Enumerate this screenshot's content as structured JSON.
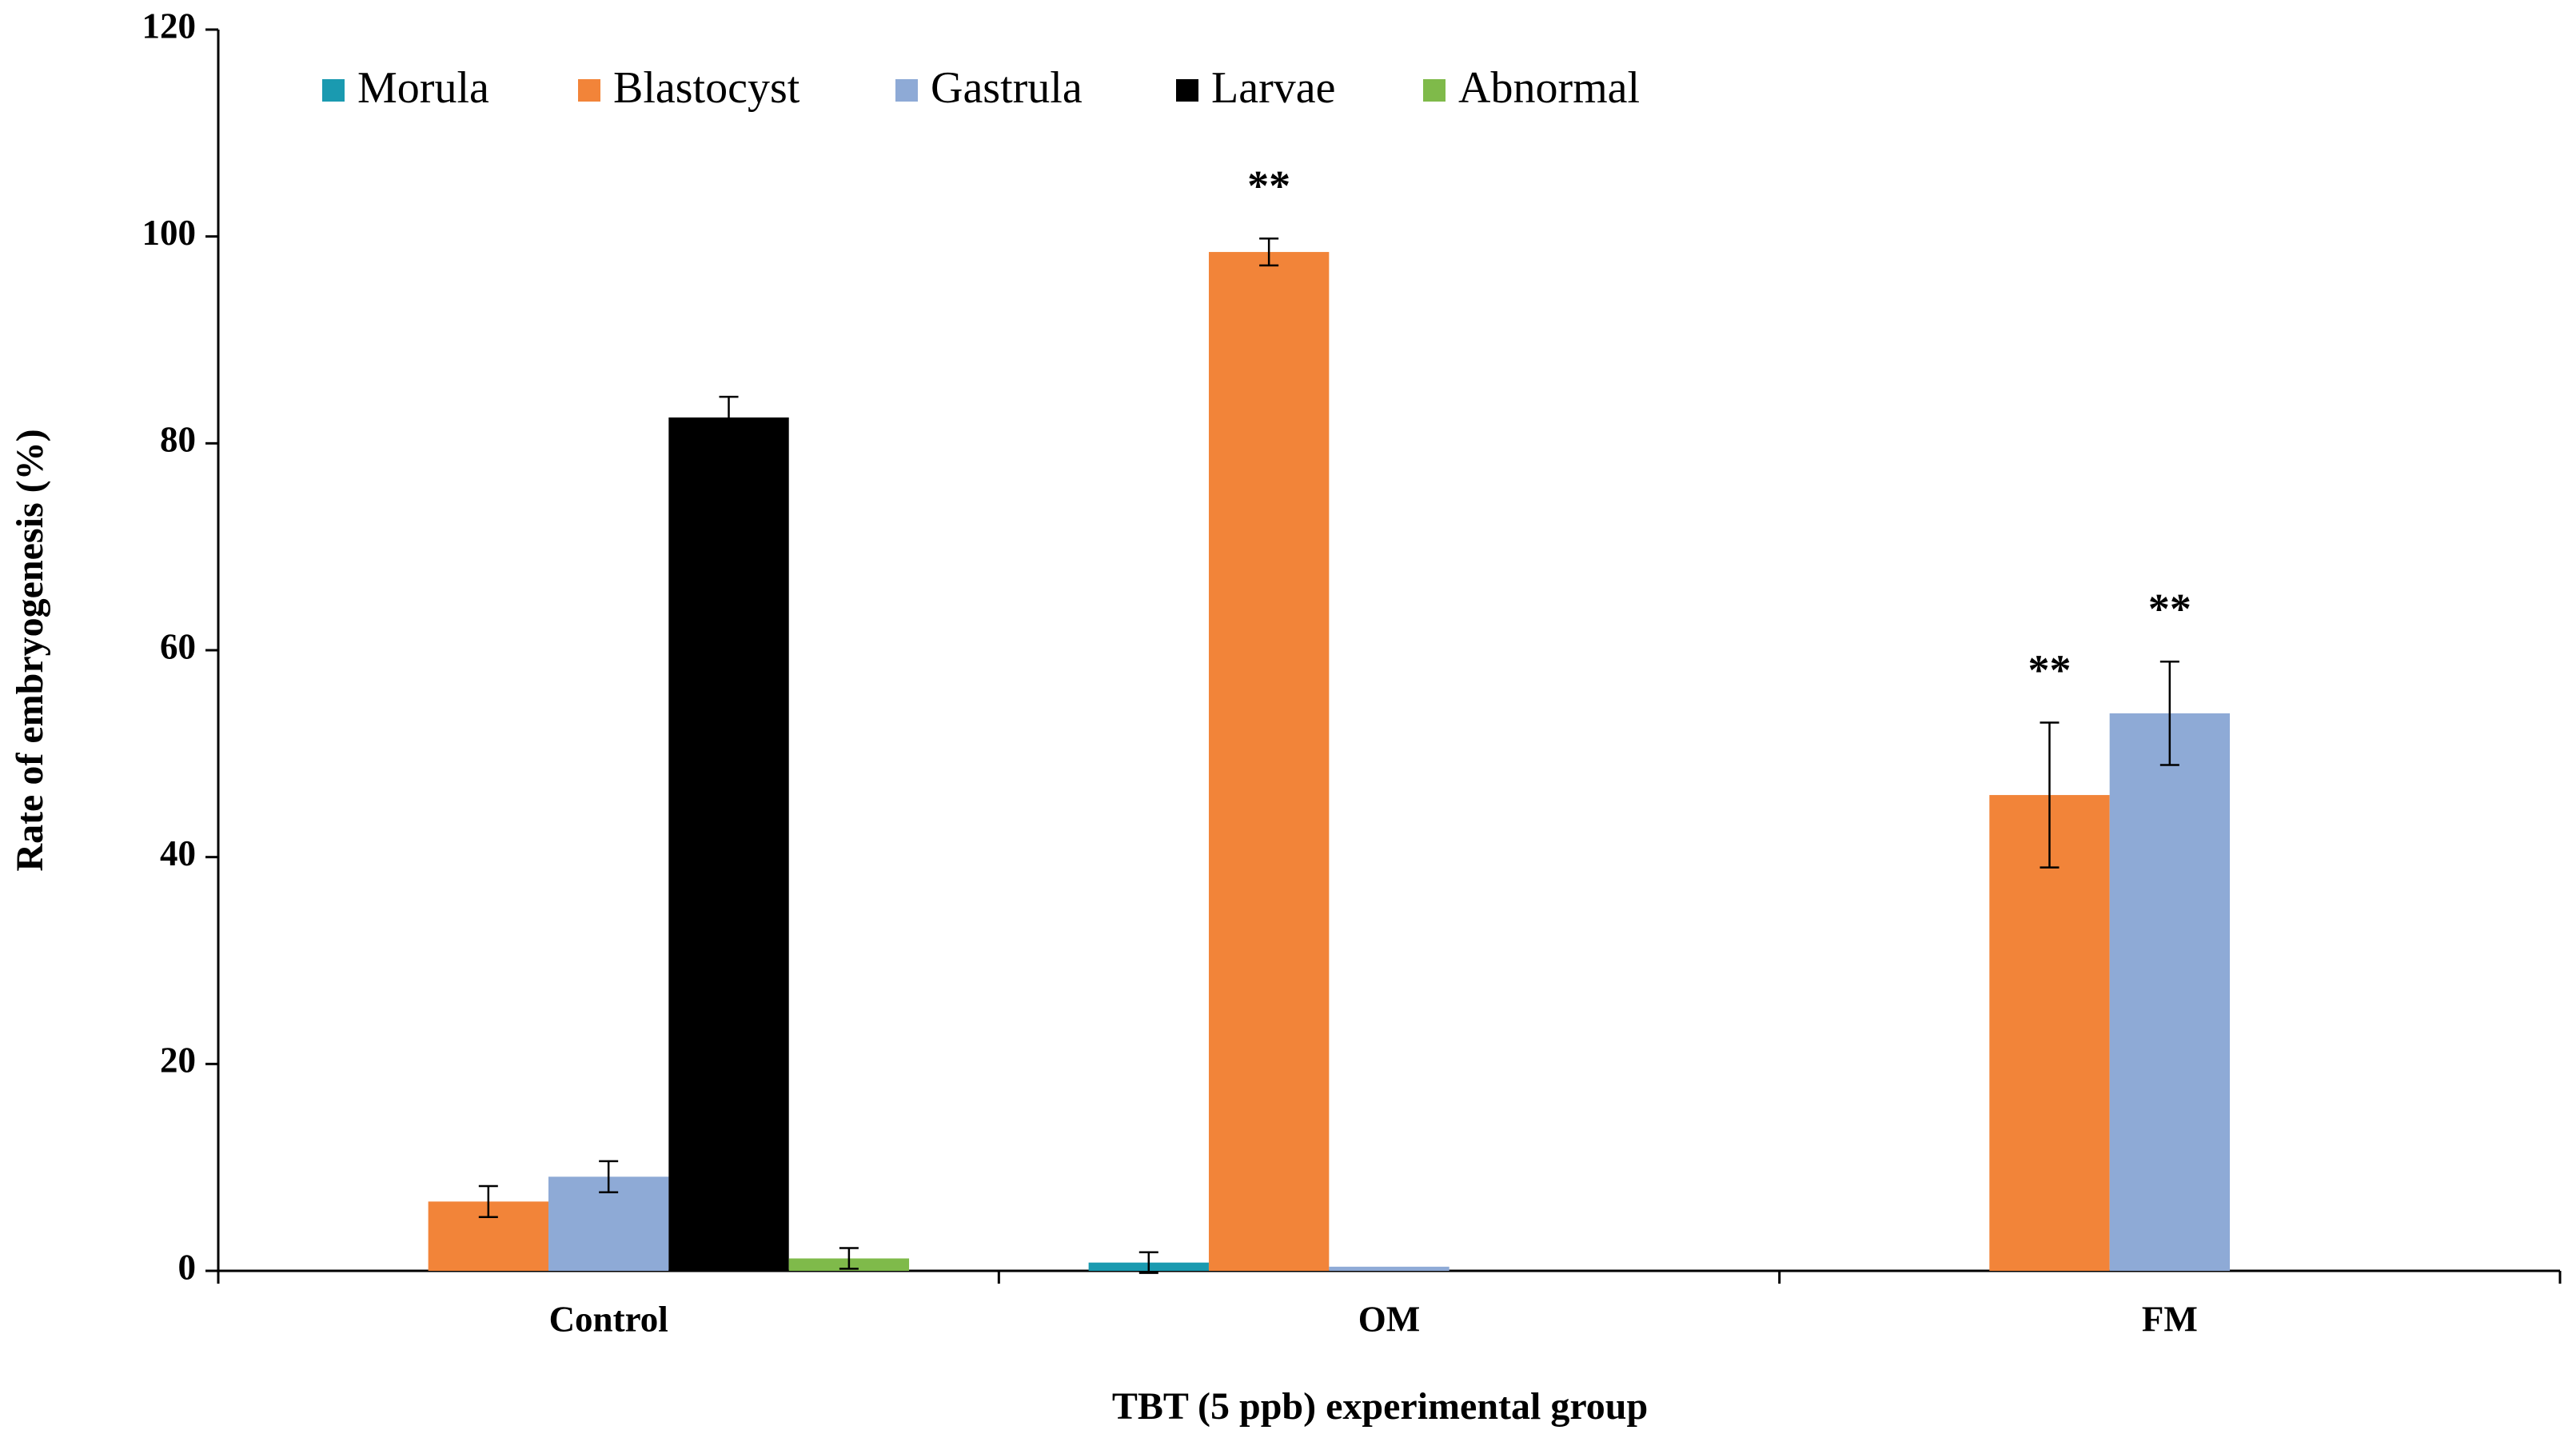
{
  "chart_data": {
    "type": "bar",
    "xlabel": "TBT (5 ppb) experimental group",
    "ylabel": "Rate of embryogenesis (%)",
    "categories": [
      "Control",
      "OM",
      "FM"
    ],
    "ylim": [
      0,
      120
    ],
    "yticks": [
      0,
      20,
      40,
      60,
      80,
      100,
      120
    ],
    "legend": "top-left",
    "series": [
      {
        "name": "Morula",
        "color": "#1a9ab0",
        "values": [
          null,
          0.8,
          null
        ],
        "errors": [
          null,
          1,
          null
        ],
        "annotations": [
          null,
          null,
          null
        ]
      },
      {
        "name": "Blastocyst",
        "color": "#f28439",
        "values": [
          6.7,
          98.5,
          46
        ],
        "errors": [
          1.5,
          1.3,
          7
        ],
        "annotations": [
          null,
          "**",
          "**"
        ]
      },
      {
        "name": "Gastrula",
        "color": "#8eaad6",
        "values": [
          9.1,
          0.4,
          53.9
        ],
        "errors": [
          1.5,
          null,
          5
        ],
        "annotations": [
          null,
          null,
          "**"
        ]
      },
      {
        "name": "Larvae",
        "color": "#000000",
        "values": [
          82.5,
          null,
          null
        ],
        "errors": [
          2,
          null,
          null
        ],
        "annotations": [
          null,
          null,
          null
        ]
      },
      {
        "name": "Abnormal",
        "color": "#7fba4a",
        "values": [
          1.2,
          null,
          null
        ],
        "errors": [
          1,
          null,
          null
        ],
        "annotations": [
          null,
          null,
          null
        ]
      }
    ]
  }
}
